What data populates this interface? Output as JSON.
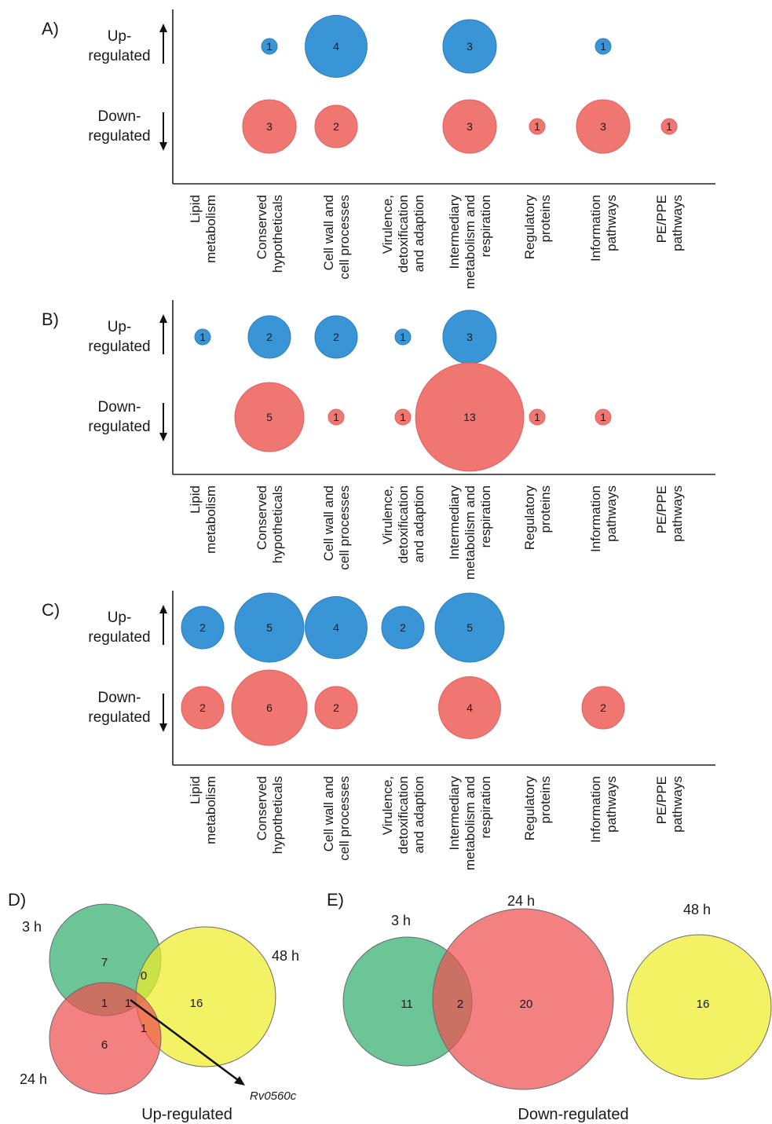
{
  "categories": [
    [
      "Lipid",
      "metabolism"
    ],
    [
      "Conserved",
      "hypotheticals"
    ],
    [
      "Cell wall and",
      "cell processes"
    ],
    [
      "Virulence,",
      "detoxification",
      "and adaption"
    ],
    [
      "Intermediary",
      "metabolism and",
      "respiration"
    ],
    [
      "Regulatory",
      "proteins"
    ],
    [
      "Information",
      "pathways"
    ],
    [
      "PE/PPE",
      "pathways"
    ]
  ],
  "row_labels": {
    "up": [
      "Up-",
      "regulated"
    ],
    "down": [
      "Down-",
      "regulated"
    ]
  },
  "colors": {
    "up": "#3a95d6",
    "down": "#f07672",
    "up_stroke": "#2a7fc0",
    "down_stroke": "#e2615d"
  },
  "chart_data": [
    {
      "type": "bubble",
      "panel": "A)",
      "categories": [
        "Lipid metabolism",
        "Conserved hypotheticals",
        "Cell wall and cell processes",
        "Virulence, detoxification and adaption",
        "Intermediary metabolism and respiration",
        "Regulatory proteins",
        "Information pathways",
        "PE/PPE pathways"
      ],
      "series": [
        {
          "name": "Up-regulated",
          "values": [
            null,
            1,
            4,
            null,
            3,
            null,
            1,
            null
          ]
        },
        {
          "name": "Down-regulated",
          "values": [
            null,
            3,
            2,
            null,
            3,
            1,
            3,
            1
          ]
        }
      ]
    },
    {
      "type": "bubble",
      "panel": "B)",
      "categories": [
        "Lipid metabolism",
        "Conserved hypotheticals",
        "Cell wall and cell processes",
        "Virulence, detoxification and adaption",
        "Intermediary metabolism and respiration",
        "Regulatory proteins",
        "Information pathways",
        "PE/PPE pathways"
      ],
      "series": [
        {
          "name": "Up-regulated",
          "values": [
            1,
            2,
            2,
            1,
            3,
            null,
            null,
            null
          ]
        },
        {
          "name": "Down-regulated",
          "values": [
            null,
            5,
            1,
            1,
            13,
            1,
            1,
            null
          ]
        }
      ]
    },
    {
      "type": "bubble",
      "panel": "C)",
      "categories": [
        "Lipid metabolism",
        "Conserved hypotheticals",
        "Cell wall and cell processes",
        "Virulence, detoxification and adaption",
        "Intermediary metabolism and respiration",
        "Regulatory proteins",
        "Information pathways",
        "PE/PPE pathways"
      ],
      "series": [
        {
          "name": "Up-regulated",
          "values": [
            2,
            5,
            4,
            2,
            5,
            null,
            null,
            null
          ]
        },
        {
          "name": "Down-regulated",
          "values": [
            2,
            6,
            2,
            null,
            4,
            null,
            2,
            null
          ]
        }
      ]
    },
    {
      "type": "venn",
      "panel": "D)",
      "title": "Up-regulated",
      "sets": [
        "3 h",
        "24 h",
        "48 h"
      ],
      "regions": {
        "3h_only": 7,
        "24h_only": 6,
        "48h_only": 16,
        "3h_48h": 0,
        "3h_24h": 1,
        "24h_48h": 1,
        "all_three": 1
      },
      "annotation": "Rv0560c"
    },
    {
      "type": "venn",
      "panel": "E)",
      "title": "Down-regulated",
      "sets": [
        "3 h",
        "24 h",
        "48 h"
      ],
      "regions": {
        "3h_only": 11,
        "3h_24h": 2,
        "24h_only": 20,
        "48h_only": 16
      }
    }
  ]
}
